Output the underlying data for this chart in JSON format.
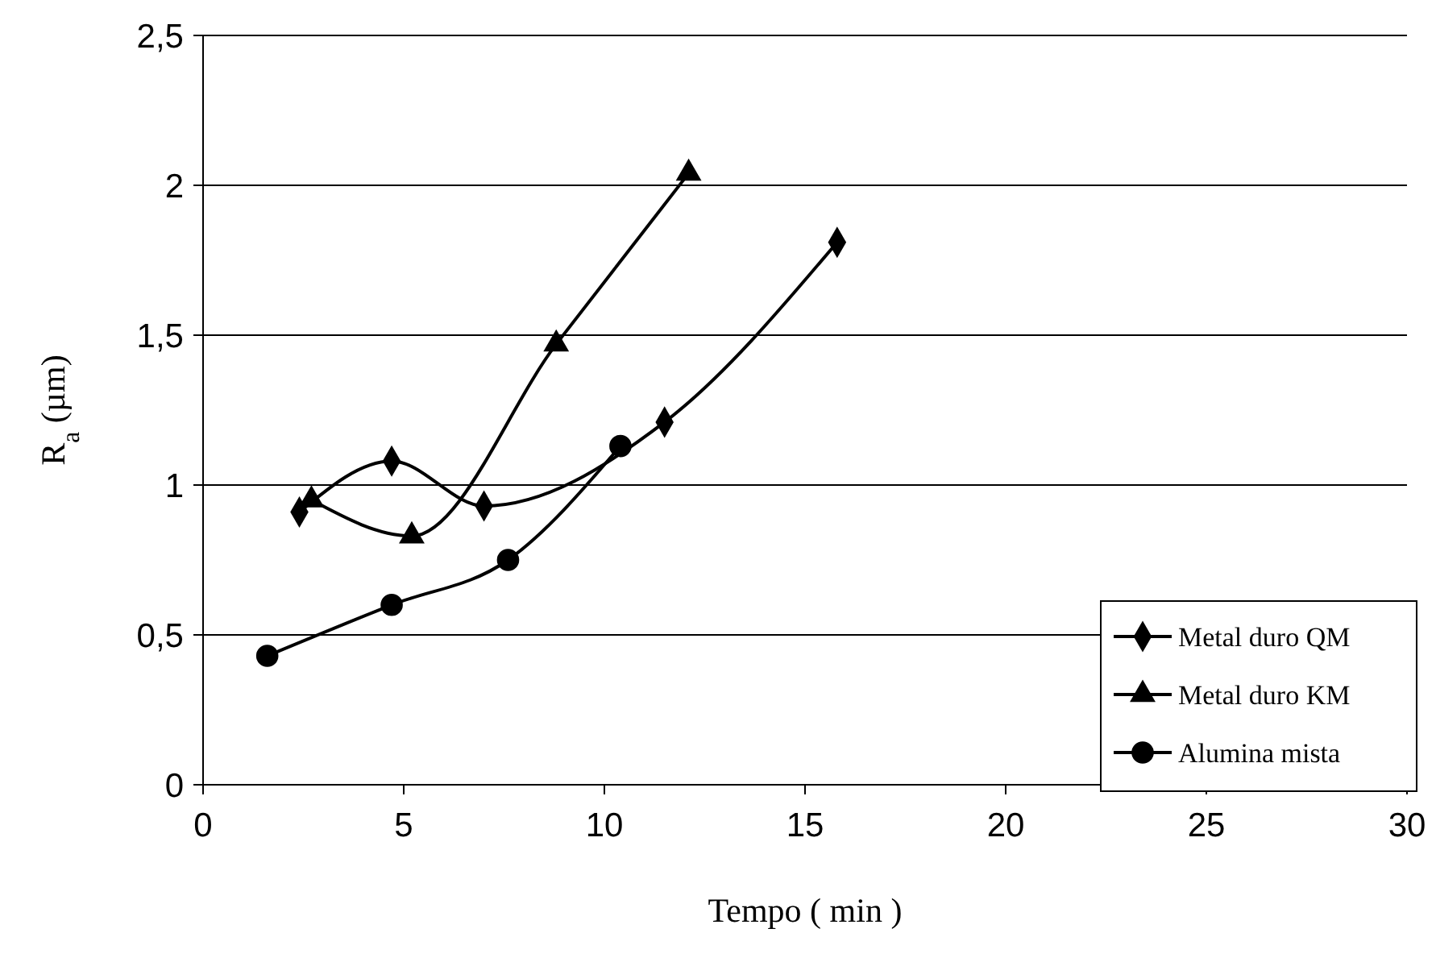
{
  "chart_data": {
    "type": "line",
    "xlabel": "Tempo ( min )",
    "ylabel": "R$_{a}$ (µm)",
    "xlim": [
      0,
      30
    ],
    "xticks": [
      0,
      5,
      10,
      15,
      20,
      25,
      30
    ],
    "ylim": [
      0,
      2.5
    ],
    "yticks": [
      0,
      {
        "value": 0.5,
        "label": "0,5"
      },
      1,
      {
        "value": 1.5,
        "label": "1,5"
      },
      2,
      {
        "value": 2.5,
        "label": "2,5"
      }
    ],
    "grid": "y",
    "legend": "bottom right",
    "line_style": "solid",
    "series": [
      {
        "name": "Metal duro QM",
        "color": "#000000",
        "marker": "diamond",
        "x": [
          2.4,
          4.7,
          7.0,
          11.5,
          15.8
        ],
        "values": [
          0.91,
          1.08,
          0.93,
          1.21,
          1.81
        ]
      },
      {
        "name": "Metal duro KM",
        "color": "#000000",
        "marker": "triangle",
        "x": [
          2.7,
          5.2,
          8.8,
          12.1
        ],
        "values": [
          0.95,
          0.83,
          1.47,
          2.04
        ]
      },
      {
        "name": "Alumina mista",
        "color": "#000000",
        "marker": "circle",
        "x": [
          1.6,
          4.7,
          7.6,
          10.4
        ],
        "values": [
          0.43,
          0.6,
          0.75,
          1.13
        ]
      }
    ]
  }
}
